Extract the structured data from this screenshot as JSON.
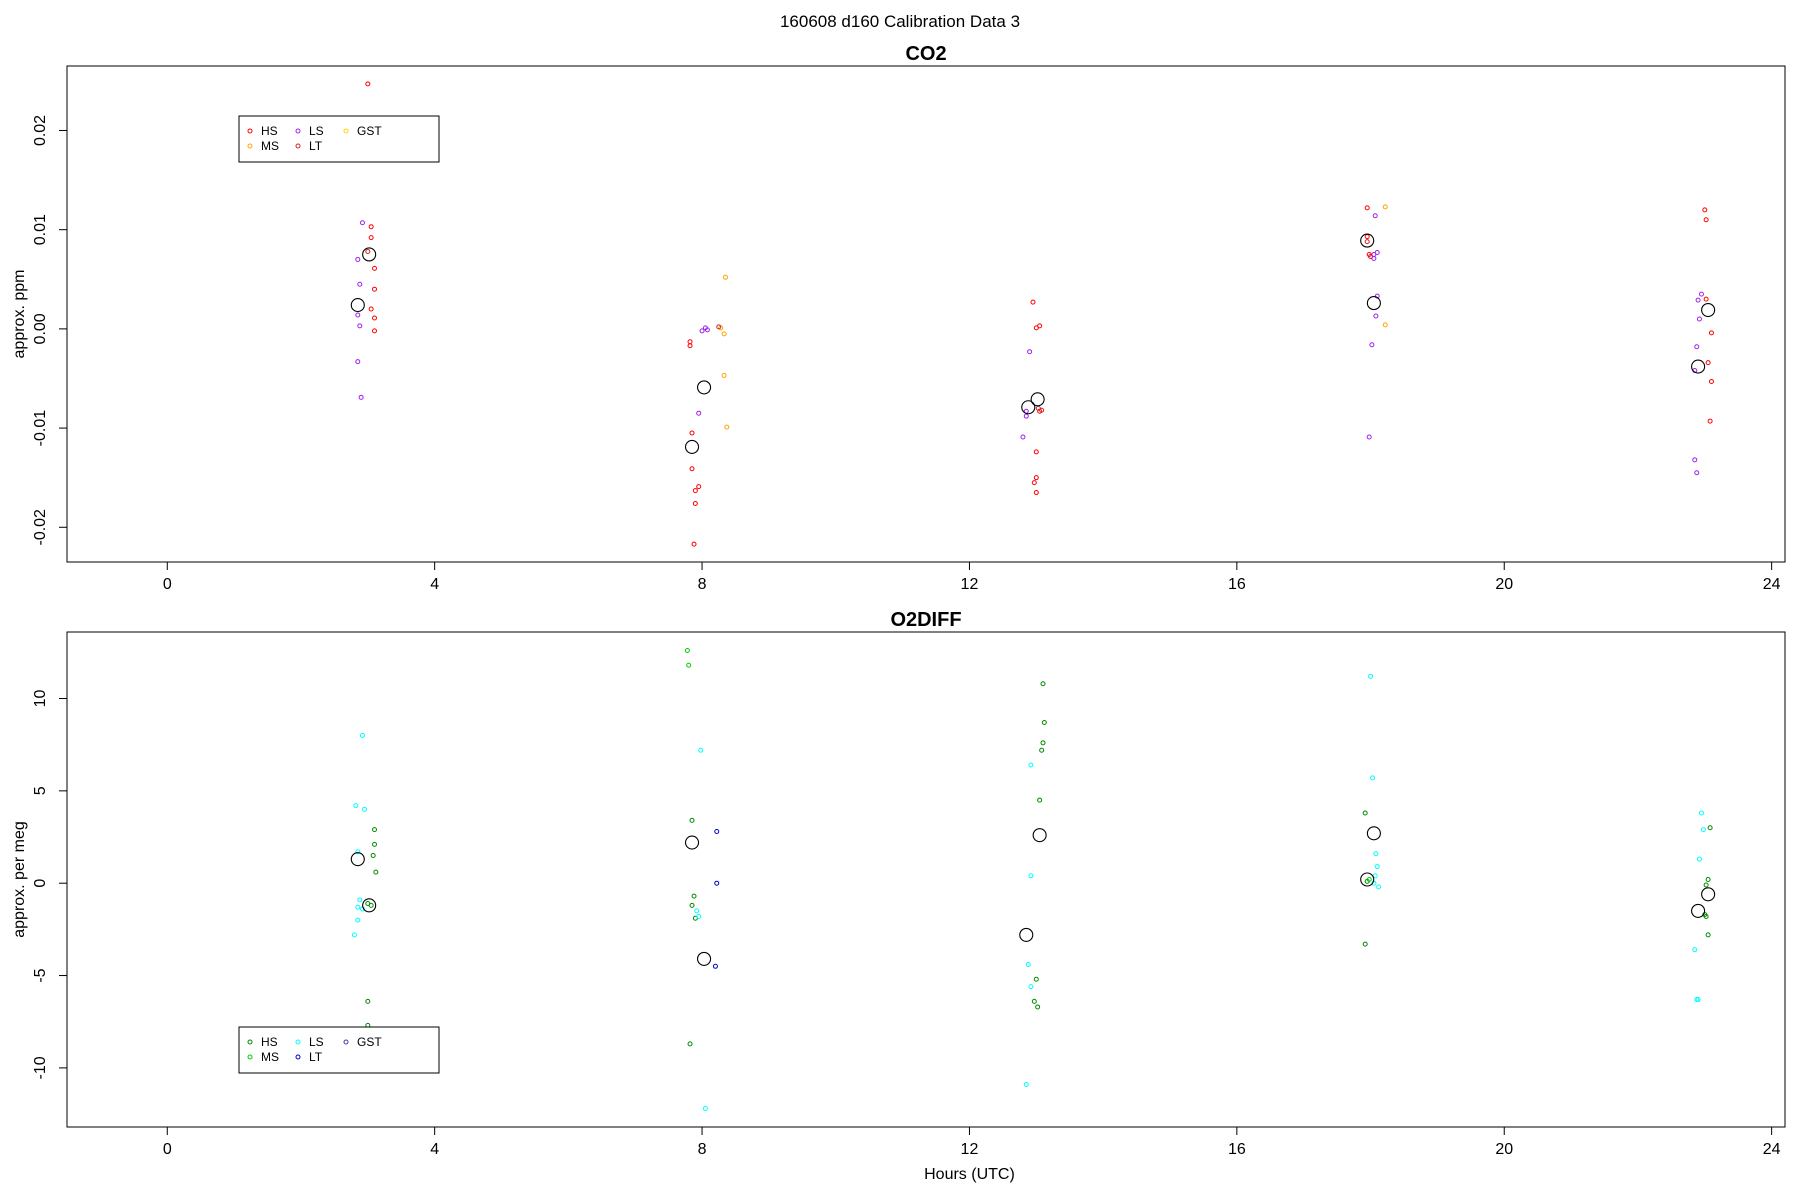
{
  "figure": {
    "title": "160608   d160   Calibration Data 3"
  },
  "chart_data": [
    {
      "type": "scatter",
      "title": "CO2",
      "xlabel": "",
      "ylabel": "approx. ppm",
      "xlim": [
        -1.5,
        24.2
      ],
      "ylim": [
        -0.0235,
        0.0265
      ],
      "xticks": [
        0,
        4,
        8,
        12,
        16,
        20,
        24
      ],
      "yticks": [
        -0.02,
        -0.01,
        0.0,
        0.01,
        0.02
      ],
      "ytick_labels": [
        "-0.02",
        "-0.01",
        "0.00",
        "0.01",
        "0.02"
      ],
      "legend_placement": "top-left",
      "legend": [
        {
          "name": "HS",
          "color": "#ff0000"
        },
        {
          "name": "MS",
          "color": "#ffa500"
        },
        {
          "name": "LS",
          "color": "#a020f0"
        },
        {
          "name": "LT",
          "color": "#cd2626"
        },
        {
          "name": "GST",
          "color": "#ffd700"
        }
      ],
      "series": [
        {
          "name": "HS",
          "color": "#ff0000",
          "points": [
            [
              3.0,
              0.0247
            ],
            [
              3.05,
              0.0103
            ],
            [
              3.05,
              0.0092
            ],
            [
              3.1,
              0.0061
            ],
            [
              3.1,
              0.004
            ],
            [
              3.05,
              0.002
            ],
            [
              3.1,
              0.0011
            ],
            [
              3.1,
              -0.0002
            ],
            [
              7.82,
              -0.0013
            ],
            [
              7.82,
              -0.0017
            ],
            [
              7.85,
              -0.0105
            ],
            [
              7.85,
              -0.0141
            ],
            [
              7.9,
              -0.0163
            ],
            [
              7.95,
              -0.0159
            ],
            [
              7.9,
              -0.0176
            ],
            [
              7.88,
              -0.0217
            ],
            [
              12.95,
              0.0027
            ],
            [
              13.0,
              0.0001
            ],
            [
              13.05,
              0.0003
            ],
            [
              13.05,
              -0.0083
            ],
            [
              13.0,
              -0.0124
            ],
            [
              13.0,
              -0.015
            ],
            [
              12.97,
              -0.0155
            ],
            [
              13.0,
              -0.0165
            ],
            [
              17.95,
              0.0122
            ],
            [
              17.95,
              0.0093
            ],
            [
              17.98,
              0.0075
            ],
            [
              18.0,
              0.0073
            ],
            [
              23.0,
              0.012
            ],
            [
              23.02,
              0.011
            ],
            [
              23.02,
              0.003
            ],
            [
              23.1,
              -0.0004
            ],
            [
              23.05,
              -0.0034
            ],
            [
              23.1,
              -0.0053
            ],
            [
              23.08,
              -0.0093
            ]
          ]
        },
        {
          "name": "MS",
          "color": "#ffa500",
          "points": [
            [
              8.35,
              0.0052
            ],
            [
              8.28,
              0.0001
            ],
            [
              8.33,
              -0.0005
            ],
            [
              8.33,
              -0.0047
            ],
            [
              8.37,
              -0.0099
            ],
            [
              18.22,
              0.0123
            ],
            [
              18.22,
              0.0004
            ]
          ]
        },
        {
          "name": "LS",
          "color": "#a020f0",
          "points": [
            [
              2.92,
              0.0107
            ],
            [
              2.85,
              0.007
            ],
            [
              2.88,
              0.0045
            ],
            [
              2.85,
              0.0014
            ],
            [
              2.88,
              0.0003
            ],
            [
              2.85,
              -0.0033
            ],
            [
              2.9,
              -0.0069
            ],
            [
              8.0,
              -0.0002
            ],
            [
              8.05,
              0.0001
            ],
            [
              8.08,
              -0.0001
            ],
            [
              7.95,
              -0.0085
            ],
            [
              12.9,
              -0.0023
            ],
            [
              12.85,
              -0.0083
            ],
            [
              12.85,
              -0.0088
            ],
            [
              12.8,
              -0.0109
            ],
            [
              18.07,
              0.0114
            ],
            [
              18.05,
              0.0075
            ],
            [
              18.1,
              0.0077
            ],
            [
              18.05,
              0.0071
            ],
            [
              18.1,
              0.0033
            ],
            [
              18.08,
              0.0013
            ],
            [
              18.02,
              -0.0016
            ],
            [
              17.98,
              -0.0109
            ],
            [
              22.95,
              0.0035
            ],
            [
              22.9,
              0.0029
            ],
            [
              22.92,
              0.001
            ],
            [
              22.88,
              -0.0018
            ],
            [
              22.85,
              -0.0042
            ],
            [
              22.85,
              -0.0132
            ],
            [
              22.88,
              -0.0145
            ]
          ]
        },
        {
          "name": "LT",
          "color": "#cd2626",
          "points": [
            [
              3.0,
              0.0078
            ],
            [
              8.25,
              0.0002
            ],
            [
              13.08,
              -0.0082
            ],
            [
              13.03,
              -0.008
            ],
            [
              17.95,
              0.0088
            ]
          ]
        },
        {
          "name": "GST",
          "color": "#ffd700",
          "points": []
        },
        {
          "name": "",
          "color": "#000000",
          "large": true,
          "points": [
            [
              3.02,
              0.0075
            ],
            [
              2.85,
              0.0024
            ],
            [
              7.85,
              -0.0119
            ],
            [
              8.03,
              -0.0059
            ],
            [
              12.88,
              -0.0079
            ],
            [
              13.02,
              -0.0071
            ],
            [
              17.95,
              0.0089
            ],
            [
              18.05,
              0.0026
            ],
            [
              22.9,
              -0.0038
            ],
            [
              23.05,
              0.0019
            ]
          ]
        }
      ]
    },
    {
      "type": "scatter",
      "title": "O2DIFF",
      "xlabel": "Hours (UTC)",
      "ylabel": "approx. per meg",
      "xlim": [
        -1.5,
        24.2
      ],
      "ylim": [
        -13.2,
        13.6
      ],
      "xticks": [
        0,
        4,
        8,
        12,
        16,
        20,
        24
      ],
      "yticks": [
        -10,
        -5,
        0,
        5,
        10
      ],
      "ytick_labels": [
        "-10",
        "-5",
        "0",
        "5",
        "10"
      ],
      "legend_placement": "bottom-left",
      "legend": [
        {
          "name": "HS",
          "color": "#008b00"
        },
        {
          "name": "MS",
          "color": "#00cd00"
        },
        {
          "name": "LS",
          "color": "#00ffff"
        },
        {
          "name": "LT",
          "color": "#0000cd"
        },
        {
          "name": "GST",
          "color": "#4040a0"
        }
      ],
      "series": [
        {
          "name": "HS",
          "color": "#008b00",
          "points": [
            [
              3.1,
              2.9
            ],
            [
              3.1,
              2.1
            ],
            [
              3.08,
              1.5
            ],
            [
              3.12,
              0.6
            ],
            [
              3.05,
              -1.2
            ],
            [
              3.0,
              -1.1
            ],
            [
              3.0,
              -6.4
            ],
            [
              3.0,
              -7.7
            ],
            [
              7.85,
              3.4
            ],
            [
              7.88,
              -0.7
            ],
            [
              7.85,
              -1.2
            ],
            [
              7.9,
              -1.9
            ],
            [
              7.82,
              -8.7
            ],
            [
              13.1,
              10.8
            ],
            [
              13.12,
              8.7
            ],
            [
              13.1,
              7.6
            ],
            [
              13.08,
              7.2
            ],
            [
              13.05,
              4.5
            ],
            [
              13.0,
              -5.2
            ],
            [
              12.97,
              -6.4
            ],
            [
              13.02,
              -6.7
            ],
            [
              17.92,
              3.8
            ],
            [
              17.95,
              0.1
            ],
            [
              17.92,
              -3.3
            ],
            [
              23.08,
              3.0
            ],
            [
              23.05,
              0.2
            ],
            [
              23.02,
              -0.1
            ],
            [
              23.0,
              -1.7
            ],
            [
              23.02,
              -1.8
            ],
            [
              23.05,
              -2.8
            ]
          ]
        },
        {
          "name": "MS",
          "color": "#00cd00",
          "points": [
            [
              7.78,
              12.6
            ],
            [
              7.8,
              11.8
            ],
            [
              17.98,
              0.2
            ]
          ]
        },
        {
          "name": "LS",
          "color": "#00ffff",
          "points": [
            [
              2.92,
              8.0
            ],
            [
              2.82,
              4.2
            ],
            [
              2.95,
              4.0
            ],
            [
              2.85,
              1.7
            ],
            [
              2.88,
              -0.9
            ],
            [
              2.85,
              -1.3
            ],
            [
              2.92,
              -1.4
            ],
            [
              2.85,
              -2.0
            ],
            [
              2.8,
              -2.8
            ],
            [
              7.98,
              7.2
            ],
            [
              7.92,
              -1.5
            ],
            [
              7.95,
              -1.8
            ],
            [
              8.05,
              -12.2
            ],
            [
              12.92,
              6.4
            ],
            [
              12.92,
              0.4
            ],
            [
              12.88,
              -4.4
            ],
            [
              12.92,
              -5.6
            ],
            [
              12.85,
              -10.9
            ],
            [
              18.0,
              11.2
            ],
            [
              18.03,
              5.7
            ],
            [
              18.08,
              1.6
            ],
            [
              18.1,
              0.9
            ],
            [
              18.07,
              0.4
            ],
            [
              18.05,
              0.0
            ],
            [
              18.12,
              -0.2
            ],
            [
              22.95,
              3.8
            ],
            [
              22.98,
              2.9
            ],
            [
              22.92,
              1.3
            ],
            [
              22.85,
              -3.6
            ],
            [
              22.88,
              -6.3
            ],
            [
              22.9,
              -6.3
            ]
          ]
        },
        {
          "name": "LT",
          "color": "#0000cd",
          "points": [
            [
              8.22,
              2.8
            ],
            [
              8.22,
              0.0
            ],
            [
              8.2,
              -4.5
            ]
          ]
        },
        {
          "name": "GST",
          "color": "#4040a0",
          "points": []
        },
        {
          "name": "",
          "color": "#000000",
          "large": true,
          "points": [
            [
              2.85,
              1.3
            ],
            [
              3.02,
              -1.2
            ],
            [
              7.85,
              2.2
            ],
            [
              8.03,
              -4.1
            ],
            [
              13.05,
              2.6
            ],
            [
              12.85,
              -2.8
            ],
            [
              17.95,
              0.2
            ],
            [
              18.05,
              2.7
            ],
            [
              22.9,
              -1.5
            ],
            [
              23.05,
              -0.6
            ]
          ]
        }
      ]
    }
  ]
}
